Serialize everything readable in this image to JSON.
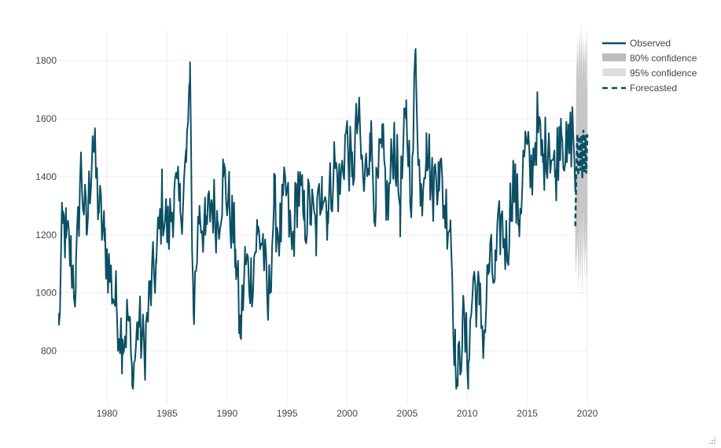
{
  "chart_data": {
    "type": "line",
    "title": "",
    "xlabel": "",
    "ylabel": "",
    "xlim": [
      1976,
      2020
    ],
    "ylim": [
      615,
      1900
    ],
    "x_ticks": [
      1980,
      1985,
      1990,
      1995,
      2000,
      2005,
      2010,
      2015,
      2020
    ],
    "y_ticks": [
      800,
      1000,
      1200,
      1400,
      1600,
      1800
    ],
    "grid": true,
    "legend_position": "top-right",
    "legend": [
      {
        "key": "observed",
        "label": "Observed",
        "color": "#0b4f63",
        "style": "solid"
      },
      {
        "key": "ci80",
        "label": "80% confidence",
        "color": "#bdbdbd",
        "style": "band"
      },
      {
        "key": "ci95",
        "label": "95% confidence",
        "color": "#dedede",
        "style": "band"
      },
      {
        "key": "forecast",
        "label": "Forecasted",
        "color": "#0b4f63",
        "style": "dashed"
      }
    ],
    "observed_anchor_points": [
      [
        1976.0,
        890
      ],
      [
        1976.3,
        1240
      ],
      [
        1976.6,
        1190
      ],
      [
        1977.0,
        1120
      ],
      [
        1977.4,
        1010
      ],
      [
        1977.8,
        1440
      ],
      [
        1978.3,
        1200
      ],
      [
        1978.8,
        1540
      ],
      [
        1979.3,
        1300
      ],
      [
        1979.8,
        1180
      ],
      [
        1980.3,
        1050
      ],
      [
        1980.8,
        950
      ],
      [
        1981.3,
        840
      ],
      [
        1981.8,
        920
      ],
      [
        1982.1,
        680
      ],
      [
        1982.6,
        900
      ],
      [
        1983.1,
        800
      ],
      [
        1983.6,
        1000
      ],
      [
        1984.1,
        1100
      ],
      [
        1984.6,
        1320
      ],
      [
        1985.1,
        1200
      ],
      [
        1985.6,
        1350
      ],
      [
        1986.1,
        1280
      ],
      [
        1986.6,
        1450
      ],
      [
        1986.9,
        1730
      ],
      [
        1987.2,
        930
      ],
      [
        1987.7,
        1300
      ],
      [
        1988.2,
        1200
      ],
      [
        1988.7,
        1320
      ],
      [
        1989.2,
        1250
      ],
      [
        1989.7,
        1400
      ],
      [
        1990.2,
        1300
      ],
      [
        1990.7,
        1150
      ],
      [
        1991.1,
        850
      ],
      [
        1991.5,
        1100
      ],
      [
        1992.0,
        1050
      ],
      [
        1992.5,
        1200
      ],
      [
        1993.0,
        1180
      ],
      [
        1993.4,
        920
      ],
      [
        1993.9,
        1300
      ],
      [
        1994.4,
        1200
      ],
      [
        1994.9,
        1350
      ],
      [
        1995.4,
        1150
      ],
      [
        1995.9,
        1380
      ],
      [
        1996.4,
        1250
      ],
      [
        1996.9,
        1300
      ],
      [
        1997.4,
        1200
      ],
      [
        1997.9,
        1400
      ],
      [
        1998.4,
        1280
      ],
      [
        1998.9,
        1450
      ],
      [
        1999.4,
        1350
      ],
      [
        1999.9,
        1550
      ],
      [
        2000.4,
        1400
      ],
      [
        2000.9,
        1600
      ],
      [
        2001.4,
        1350
      ],
      [
        2001.9,
        1550
      ],
      [
        2002.4,
        1300
      ],
      [
        2002.9,
        1500
      ],
      [
        2003.4,
        1280
      ],
      [
        2003.9,
        1550
      ],
      [
        2004.4,
        1300
      ],
      [
        2004.9,
        1600
      ],
      [
        2005.4,
        1350
      ],
      [
        2005.7,
        1840
      ],
      [
        2006.1,
        1300
      ],
      [
        2006.6,
        1550
      ],
      [
        2007.1,
        1350
      ],
      [
        2007.6,
        1450
      ],
      [
        2008.1,
        1300
      ],
      [
        2008.6,
        1250
      ],
      [
        2009.0,
        770
      ],
      [
        2009.2,
        680
      ],
      [
        2009.6,
        900
      ],
      [
        2010.1,
        760
      ],
      [
        2010.5,
        1050
      ],
      [
        2011.0,
        960
      ],
      [
        2011.4,
        850
      ],
      [
        2011.8,
        1100
      ],
      [
        2012.3,
        1050
      ],
      [
        2012.8,
        1250
      ],
      [
        2013.3,
        1150
      ],
      [
        2013.8,
        1400
      ],
      [
        2014.3,
        1250
      ],
      [
        2014.8,
        1500
      ],
      [
        2015.3,
        1400
      ],
      [
        2015.8,
        1580
      ],
      [
        2016.3,
        1450
      ],
      [
        2016.8,
        1550
      ],
      [
        2017.3,
        1400
      ],
      [
        2017.8,
        1600
      ],
      [
        2018.3,
        1450
      ],
      [
        2018.8,
        1580
      ],
      [
        2019.0,
        1400
      ]
    ],
    "forecast": {
      "x_start": 2019.0,
      "x_end": 2020.0,
      "y_start": 1230,
      "level": 1480,
      "amplitude": 90,
      "ci80_upper_peak": 1820,
      "ci80_lower_min": 1150,
      "ci95_upper_peak": 1880,
      "ci95_lower_min": 1050
    }
  }
}
